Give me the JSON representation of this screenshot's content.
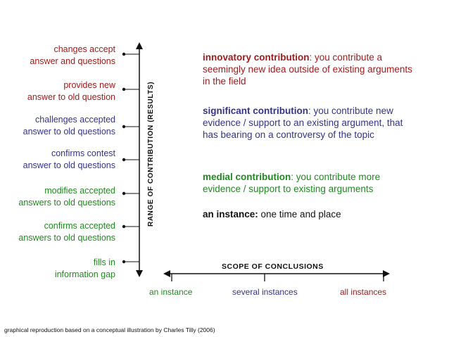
{
  "y_axis_title": "RANGE OF CONTRIBUTION (RESULTS)",
  "x_axis_title": "SCOPE OF CONCLUSIONS",
  "contribution_levels": [
    {
      "line1": "changes accept ",
      "line2": "answer and questions",
      "color": "#a01c1c"
    },
    {
      "line1": "provides new ",
      "line2": "answer to old question",
      "color": "#a01c1c"
    },
    {
      "line1": "challenges accepted",
      "line2": "answer to old questions",
      "color": "#33338a"
    },
    {
      "line1": "confirms contest ",
      "line2": "answer to old questions",
      "color": "#33338a"
    },
    {
      "line1": "modifies accepted",
      "line2": "answers to old questions",
      "color": "#1f8a1f"
    },
    {
      "line1": "confirms accepted",
      "line2": "answers to old questions",
      "color": "#1f8a1f"
    },
    {
      "line1": "fills in ",
      "line2": "information gap",
      "color": "#1f8a1f"
    }
  ],
  "definitions": {
    "innovatory": {
      "term": "innovatory contribution",
      "text": ": you contribute a seemingly new idea outside of existing arguments in the field",
      "color": "#a01c1c"
    },
    "significant": {
      "term": "significant contribution",
      "text": ": you contribute new evidence / support to an existing argument, that has bearing on a controversy of the topic",
      "color": "#33338a"
    },
    "medial": {
      "term": "medial contribution",
      "text": ": you contribute more evidence / support to existing arguments",
      "color": "#1f8a1f"
    },
    "instance": {
      "term": "an instance:",
      "text": " one time and place",
      "color": "#111111"
    }
  },
  "scope_labels": [
    {
      "text": "an instance",
      "color": "#1f8a1f"
    },
    {
      "text": "several instances",
      "color": "#33338a"
    },
    {
      "text": "all instances",
      "color": "#a01c1c"
    }
  ],
  "caption": "graphical reproduction based on a conceptual illustration by Charles Tilly (2006)"
}
